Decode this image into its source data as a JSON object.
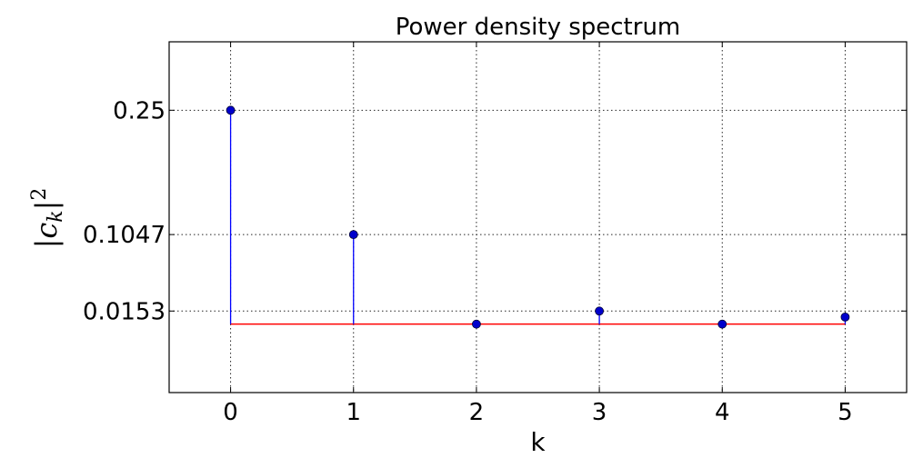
{
  "chart_data": {
    "type": "stem",
    "title": "Power density spectrum",
    "xlabel": "k",
    "ylabel": {
      "base": "c",
      "subscript": "k",
      "superscript": "2"
    },
    "x": [
      0,
      1,
      2,
      3,
      4,
      5
    ],
    "values": [
      0.25,
      0.1047,
      0.0,
      0.0153,
      0.0,
      0.0083
    ],
    "baseline": 0.0,
    "xlim": [
      -0.5,
      5.5
    ],
    "ylim": [
      -0.08,
      0.33
    ],
    "xticks": [
      0,
      1,
      2,
      3,
      4,
      5
    ],
    "xtick_labels": [
      "0",
      "1",
      "2",
      "3",
      "4",
      "5"
    ],
    "yticks": [
      0.0153,
      0.1047,
      0.25
    ],
    "ytick_labels": [
      "0.0153",
      "0.1047",
      "0.25"
    ],
    "grid": true,
    "colors": {
      "stem": "#0000ff",
      "marker": "#0000cc",
      "baseline": "#ff0000"
    }
  }
}
